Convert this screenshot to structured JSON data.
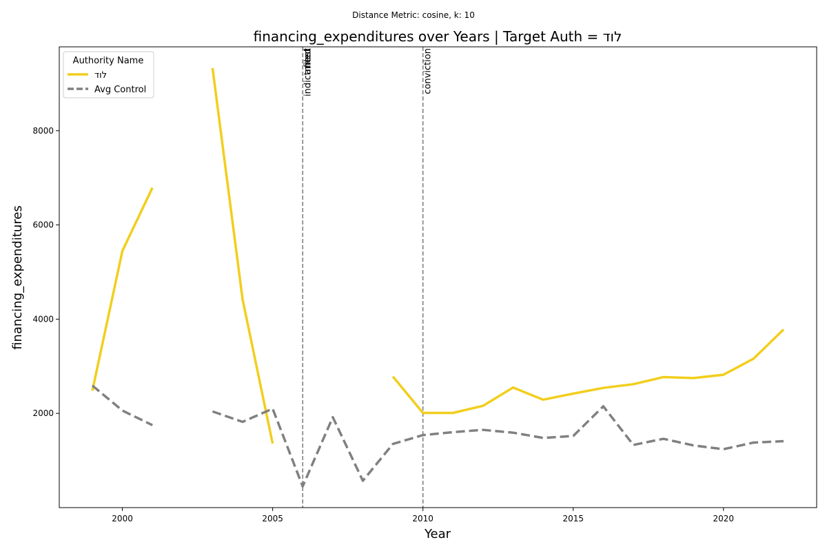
{
  "chart_data": {
    "type": "line",
    "suptitle": "Distance Metric: cosine, k: 10",
    "title": "financing_expenditures over Years | Target Auth = לוד",
    "xlabel": "Year",
    "ylabel": "financing_expenditures",
    "xlim": [
      1997.9,
      2023.1
    ],
    "ylim": [
      -0.1,
      9780
    ],
    "xticks": [
      2000,
      2005,
      2010,
      2015,
      2020
    ],
    "yticks": [
      2000,
      4000,
      6000,
      8000
    ],
    "legend": {
      "title": "Authority Name",
      "position": "top-left"
    },
    "series": [
      {
        "name": "לוד",
        "color": "#f2ce1d",
        "dash": "solid",
        "x": [
          1999,
          2000,
          2001,
          2002,
          2003,
          2004,
          2005,
          2006,
          2007,
          2008,
          2009,
          2010,
          2011,
          2012,
          2013,
          2014,
          2015,
          2016,
          2017,
          2018,
          2019,
          2020,
          2021,
          2022
        ],
        "y": [
          2480,
          5450,
          6790,
          null,
          9330,
          4420,
          1360,
          null,
          null,
          null,
          2780,
          2010,
          2010,
          2160,
          2550,
          2290,
          2420,
          2540,
          2620,
          2770,
          2750,
          2820,
          3160,
          3780
        ]
      },
      {
        "name": "Avg Control",
        "color": "#808080",
        "dash": "dashed",
        "x": [
          1999,
          2000,
          2001,
          2002,
          2003,
          2004,
          2005,
          2006,
          2007,
          2008,
          2009,
          2010,
          2011,
          2012,
          2013,
          2014,
          2015,
          2016,
          2017,
          2018,
          2019,
          2020,
          2021,
          2022
        ],
        "y": [
          2590,
          2060,
          1750,
          null,
          2040,
          1820,
          2100,
          450,
          1920,
          570,
          1350,
          1540,
          1600,
          1650,
          1590,
          1480,
          1520,
          2150,
          1330,
          1460,
          1320,
          1240,
          1380,
          1410
        ]
      }
    ],
    "events": [
      {
        "x": 2006,
        "label": "indictment"
      },
      {
        "x": 2006,
        "label": "arrest"
      },
      {
        "x": 2006,
        "label": "filed"
      },
      {
        "x": 2010,
        "label": "conviction"
      }
    ]
  }
}
